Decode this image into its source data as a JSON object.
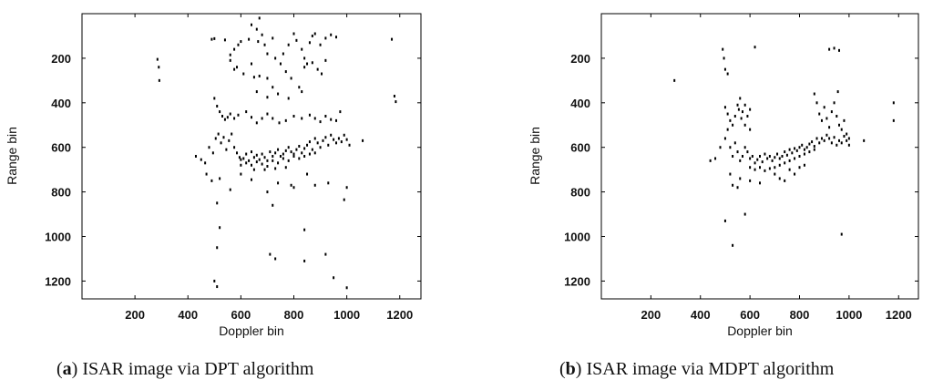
{
  "chart_data": [
    {
      "type": "scatter",
      "panel_id": "a",
      "caption_label": "a",
      "caption_text": "ISAR image via DPT algorithm",
      "xlabel": "Doppler bin",
      "ylabel": "Range bin",
      "xlim": [
        0,
        1280
      ],
      "ylim": [
        1280,
        0
      ],
      "y_inverted": true,
      "xticks": [
        200,
        400,
        600,
        800,
        1000,
        1200
      ],
      "yticks": [
        200,
        400,
        600,
        800,
        1000,
        1200
      ],
      "grid": false,
      "marker_color": "#000000",
      "points": [
        [
          285,
          205
        ],
        [
          290,
          240
        ],
        [
          292,
          300
        ],
        [
          1170,
          115
        ],
        [
          1180,
          370
        ],
        [
          1185,
          395
        ],
        [
          490,
          115
        ],
        [
          500,
          112
        ],
        [
          540,
          118
        ],
        [
          560,
          185
        ],
        [
          575,
          160
        ],
        [
          590,
          140
        ],
        [
          600,
          125
        ],
        [
          630,
          115
        ],
        [
          640,
          50
        ],
        [
          660,
          70
        ],
        [
          665,
          125
        ],
        [
          670,
          20
        ],
        [
          680,
          95
        ],
        [
          690,
          140
        ],
        [
          700,
          180
        ],
        [
          720,
          110
        ],
        [
          730,
          200
        ],
        [
          760,
          180
        ],
        [
          780,
          140
        ],
        [
          800,
          90
        ],
        [
          810,
          120
        ],
        [
          830,
          160
        ],
        [
          840,
          200
        ],
        [
          850,
          225
        ],
        [
          860,
          130
        ],
        [
          870,
          100
        ],
        [
          880,
          90
        ],
        [
          900,
          140
        ],
        [
          920,
          110
        ],
        [
          940,
          95
        ],
        [
          960,
          105
        ],
        [
          560,
          210
        ],
        [
          575,
          250
        ],
        [
          585,
          240
        ],
        [
          610,
          270
        ],
        [
          640,
          225
        ],
        [
          650,
          285
        ],
        [
          670,
          280
        ],
        [
          700,
          290
        ],
        [
          720,
          330
        ],
        [
          750,
          225
        ],
        [
          770,
          260
        ],
        [
          790,
          290
        ],
        [
          820,
          330
        ],
        [
          840,
          240
        ],
        [
          870,
          220
        ],
        [
          890,
          250
        ],
        [
          905,
          270
        ],
        [
          920,
          210
        ],
        [
          660,
          350
        ],
        [
          700,
          375
        ],
        [
          740,
          360
        ],
        [
          780,
          380
        ],
        [
          830,
          350
        ],
        [
          500,
          380
        ],
        [
          510,
          415
        ],
        [
          520,
          440
        ],
        [
          530,
          460
        ],
        [
          540,
          475
        ],
        [
          550,
          465
        ],
        [
          560,
          450
        ],
        [
          575,
          470
        ],
        [
          590,
          455
        ],
        [
          620,
          440
        ],
        [
          640,
          465
        ],
        [
          660,
          490
        ],
        [
          680,
          470
        ],
        [
          700,
          450
        ],
        [
          720,
          470
        ],
        [
          745,
          490
        ],
        [
          770,
          480
        ],
        [
          800,
          460
        ],
        [
          830,
          470
        ],
        [
          860,
          455
        ],
        [
          880,
          470
        ],
        [
          900,
          485
        ],
        [
          920,
          460
        ],
        [
          940,
          475
        ],
        [
          960,
          480
        ],
        [
          975,
          440
        ],
        [
          430,
          640
        ],
        [
          450,
          655
        ],
        [
          465,
          670
        ],
        [
          480,
          600
        ],
        [
          495,
          625
        ],
        [
          505,
          560
        ],
        [
          515,
          540
        ],
        [
          525,
          580
        ],
        [
          535,
          555
        ],
        [
          545,
          610
        ],
        [
          555,
          570
        ],
        [
          565,
          540
        ],
        [
          575,
          600
        ],
        [
          585,
          625
        ],
        [
          595,
          645
        ],
        [
          600,
          680
        ],
        [
          610,
          650
        ],
        [
          620,
          630
        ],
        [
          630,
          660
        ],
        [
          640,
          620
        ],
        [
          650,
          645
        ],
        [
          660,
          635
        ],
        [
          670,
          655
        ],
        [
          680,
          630
        ],
        [
          690,
          645
        ],
        [
          700,
          660
        ],
        [
          710,
          620
        ],
        [
          720,
          640
        ],
        [
          730,
          625
        ],
        [
          740,
          610
        ],
        [
          750,
          640
        ],
        [
          760,
          630
        ],
        [
          770,
          615
        ],
        [
          780,
          600
        ],
        [
          790,
          620
        ],
        [
          800,
          640
        ],
        [
          810,
          610
        ],
        [
          820,
          595
        ],
        [
          830,
          625
        ],
        [
          840,
          605
        ],
        [
          850,
          590
        ],
        [
          860,
          575
        ],
        [
          870,
          610
        ],
        [
          880,
          560
        ],
        [
          890,
          580
        ],
        [
          900,
          600
        ],
        [
          910,
          570
        ],
        [
          920,
          555
        ],
        [
          930,
          590
        ],
        [
          940,
          545
        ],
        [
          950,
          565
        ],
        [
          960,
          580
        ],
        [
          970,
          560
        ],
        [
          980,
          575
        ],
        [
          990,
          545
        ],
        [
          1000,
          565
        ],
        [
          1010,
          590
        ],
        [
          1060,
          570
        ],
        [
          600,
          655
        ],
        [
          620,
          670
        ],
        [
          640,
          680
        ],
        [
          660,
          665
        ],
        [
          680,
          675
        ],
        [
          700,
          685
        ],
        [
          720,
          660
        ],
        [
          740,
          670
        ],
        [
          760,
          650
        ],
        [
          780,
          660
        ],
        [
          800,
          630
        ],
        [
          820,
          650
        ],
        [
          840,
          640
        ],
        [
          860,
          630
        ],
        [
          880,
          625
        ],
        [
          650,
          700
        ],
        [
          690,
          700
        ],
        [
          730,
          695
        ],
        [
          770,
          690
        ],
        [
          470,
          720
        ],
        [
          490,
          750
        ],
        [
          520,
          740
        ],
        [
          560,
          790
        ],
        [
          600,
          720
        ],
        [
          640,
          745
        ],
        [
          700,
          800
        ],
        [
          720,
          860
        ],
        [
          740,
          760
        ],
        [
          790,
          770
        ],
        [
          800,
          780
        ],
        [
          850,
          720
        ],
        [
          880,
          770
        ],
        [
          930,
          760
        ],
        [
          990,
          835
        ],
        [
          1000,
          780
        ],
        [
          510,
          850
        ],
        [
          520,
          960
        ],
        [
          510,
          1050
        ],
        [
          710,
          1080
        ],
        [
          730,
          1100
        ],
        [
          840,
          970
        ],
        [
          840,
          1110
        ],
        [
          920,
          1080
        ],
        [
          950,
          1185
        ],
        [
          1000,
          1230
        ],
        [
          500,
          1200
        ],
        [
          510,
          1225
        ]
      ]
    },
    {
      "type": "scatter",
      "panel_id": "b",
      "caption_label": "b",
      "caption_text": "ISAR image via MDPT algorithm",
      "xlabel": "Doppler bin",
      "ylabel": "Range bin",
      "xlim": [
        0,
        1280
      ],
      "ylim": [
        1280,
        0
      ],
      "y_inverted": true,
      "xticks": [
        200,
        400,
        600,
        800,
        1000,
        1200
      ],
      "yticks": [
        200,
        400,
        600,
        800,
        1000,
        1200
      ],
      "grid": false,
      "marker_color": "#000000",
      "points": [
        [
          295,
          300
        ],
        [
          490,
          160
        ],
        [
          495,
          200
        ],
        [
          500,
          250
        ],
        [
          510,
          270
        ],
        [
          620,
          150
        ],
        [
          920,
          160
        ],
        [
          940,
          155
        ],
        [
          960,
          165
        ],
        [
          1180,
          400
        ],
        [
          1180,
          480
        ],
        [
          500,
          420
        ],
        [
          510,
          450
        ],
        [
          520,
          480
        ],
        [
          530,
          500
        ],
        [
          540,
          460
        ],
        [
          550,
          410
        ],
        [
          555,
          430
        ],
        [
          560,
          380
        ],
        [
          565,
          470
        ],
        [
          570,
          440
        ],
        [
          580,
          410
        ],
        [
          590,
          460
        ],
        [
          600,
          430
        ],
        [
          580,
          500
        ],
        [
          600,
          520
        ],
        [
          860,
          360
        ],
        [
          870,
          400
        ],
        [
          880,
          450
        ],
        [
          890,
          480
        ],
        [
          900,
          420
        ],
        [
          910,
          470
        ],
        [
          920,
          510
        ],
        [
          930,
          440
        ],
        [
          940,
          400
        ],
        [
          950,
          460
        ],
        [
          955,
          350
        ],
        [
          960,
          500
        ],
        [
          970,
          520
        ],
        [
          980,
          480
        ],
        [
          990,
          540
        ],
        [
          1000,
          560
        ],
        [
          440,
          660
        ],
        [
          460,
          650
        ],
        [
          480,
          600
        ],
        [
          500,
          560
        ],
        [
          510,
          520
        ],
        [
          520,
          600
        ],
        [
          530,
          640
        ],
        [
          540,
          580
        ],
        [
          550,
          620
        ],
        [
          560,
          660
        ],
        [
          570,
          640
        ],
        [
          580,
          600
        ],
        [
          590,
          620
        ],
        [
          600,
          650
        ],
        [
          610,
          640
        ],
        [
          620,
          670
        ],
        [
          630,
          655
        ],
        [
          640,
          640
        ],
        [
          650,
          665
        ],
        [
          660,
          630
        ],
        [
          670,
          650
        ],
        [
          680,
          640
        ],
        [
          690,
          660
        ],
        [
          700,
          645
        ],
        [
          710,
          630
        ],
        [
          720,
          650
        ],
        [
          730,
          640
        ],
        [
          740,
          620
        ],
        [
          750,
          635
        ],
        [
          760,
          610
        ],
        [
          770,
          625
        ],
        [
          780,
          605
        ],
        [
          790,
          615
        ],
        [
          800,
          600
        ],
        [
          810,
          590
        ],
        [
          820,
          610
        ],
        [
          830,
          600
        ],
        [
          840,
          585
        ],
        [
          850,
          575
        ],
        [
          860,
          595
        ],
        [
          870,
          560
        ],
        [
          880,
          580
        ],
        [
          890,
          560
        ],
        [
          900,
          570
        ],
        [
          910,
          545
        ],
        [
          920,
          560
        ],
        [
          930,
          580
        ],
        [
          940,
          555
        ],
        [
          950,
          590
        ],
        [
          960,
          570
        ],
        [
          970,
          580
        ],
        [
          980,
          550
        ],
        [
          990,
          570
        ],
        [
          1000,
          590
        ],
        [
          1060,
          570
        ],
        [
          600,
          690
        ],
        [
          620,
          700
        ],
        [
          640,
          690
        ],
        [
          660,
          705
        ],
        [
          680,
          695
        ],
        [
          700,
          690
        ],
        [
          720,
          680
        ],
        [
          740,
          670
        ],
        [
          760,
          660
        ],
        [
          780,
          650
        ],
        [
          800,
          640
        ],
        [
          820,
          630
        ],
        [
          840,
          620
        ],
        [
          860,
          610
        ],
        [
          520,
          720
        ],
        [
          530,
          770
        ],
        [
          550,
          780
        ],
        [
          560,
          740
        ],
        [
          600,
          750
        ],
        [
          640,
          760
        ],
        [
          700,
          720
        ],
        [
          720,
          740
        ],
        [
          740,
          750
        ],
        [
          760,
          700
        ],
        [
          780,
          720
        ],
        [
          800,
          690
        ],
        [
          820,
          680
        ],
        [
          500,
          930
        ],
        [
          530,
          1040
        ],
        [
          580,
          900
        ],
        [
          970,
          990
        ]
      ]
    }
  ]
}
